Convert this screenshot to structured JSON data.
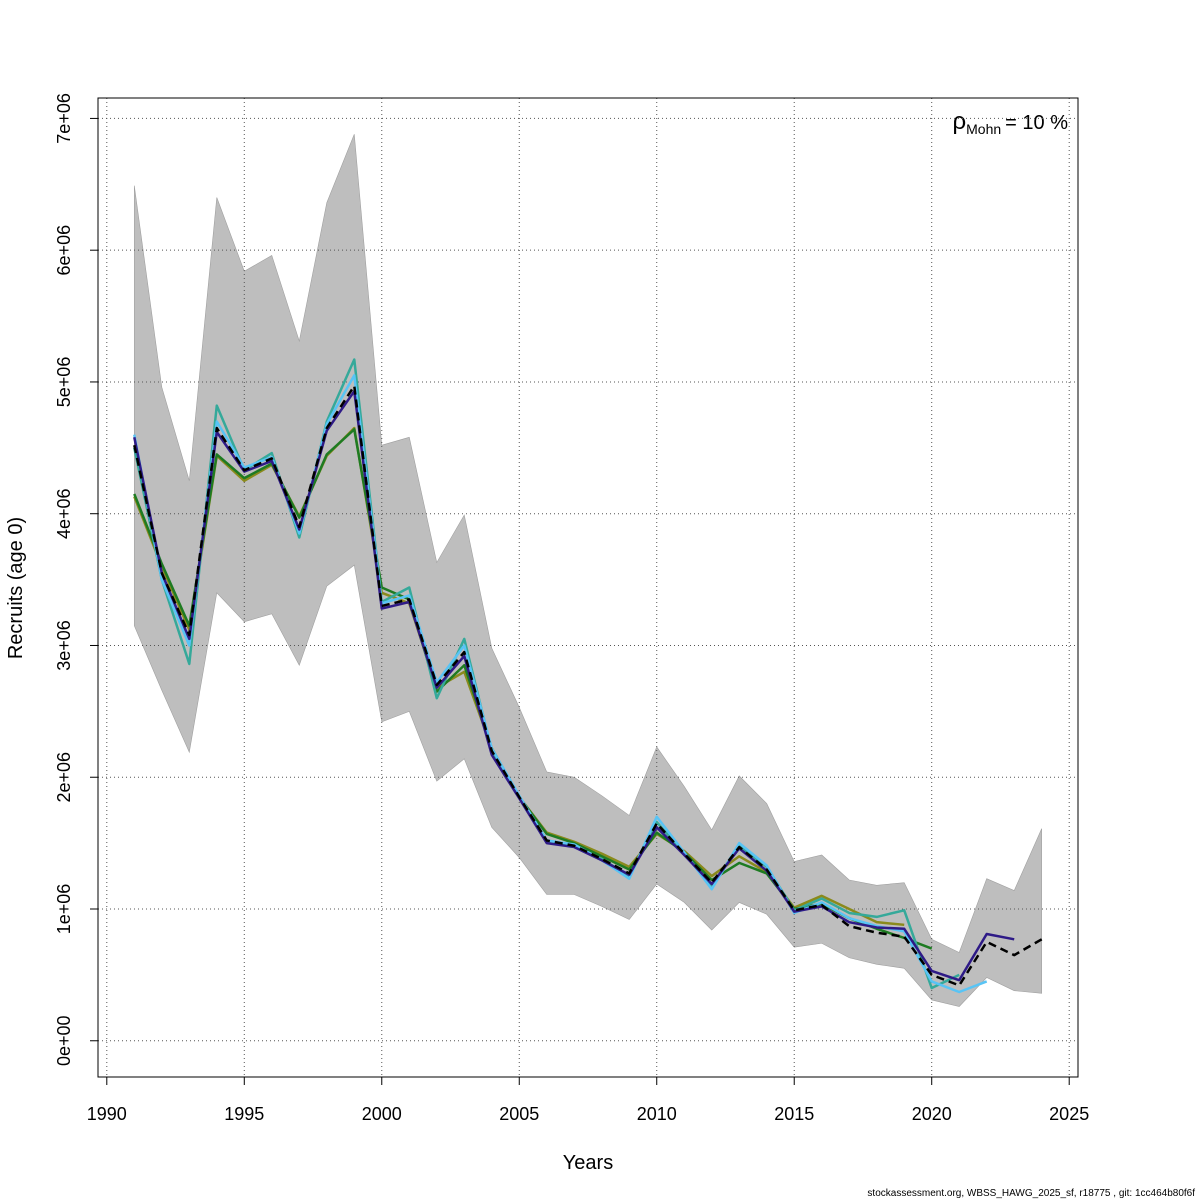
{
  "chart_data": {
    "type": "line",
    "x_label": "Years",
    "y_label": "Recruits (age 0)",
    "annotation": {
      "symbol": "ρ",
      "subscript": "Mohn",
      "text": "= 10 %"
    },
    "footer": "stockassessment.org, WBSS_HAWG_2025_sf, r18775 , git: 1cc464b80f6f",
    "xlim": [
      1989.68,
      2025.32
    ],
    "ylim": [
      -275000,
      7155000
    ],
    "xticks": [
      1990,
      1995,
      2000,
      2005,
      2010,
      2015,
      2020,
      2025
    ],
    "yticks": [
      {
        "value": 0,
        "label": "0e+00"
      },
      {
        "value": 1000000,
        "label": "1e+06"
      },
      {
        "value": 2000000,
        "label": "2e+06"
      },
      {
        "value": 3000000,
        "label": "3e+06"
      },
      {
        "value": 4000000,
        "label": "4e+06"
      },
      {
        "value": 5000000,
        "label": "5e+06"
      },
      {
        "value": 6000000,
        "label": "6e+06"
      },
      {
        "value": 7000000,
        "label": "7e+06"
      }
    ],
    "grid": true,
    "x": [
      1991,
      1992,
      1993,
      1994,
      1995,
      1996,
      1997,
      1998,
      1999,
      2000,
      2001,
      2002,
      2003,
      2004,
      2005,
      2006,
      2007,
      2008,
      2009,
      2010,
      2011,
      2012,
      2013,
      2014,
      2015,
      2016,
      2017,
      2018,
      2019,
      2020,
      2021,
      2022,
      2023,
      2024
    ],
    "band": {
      "color": "#bebebe",
      "upper": [
        6490000.0,
        4960000.0,
        4250000.0,
        6400000.0,
        5840000.0,
        5960000.0,
        5310000.0,
        6360000.0,
        6880000.0,
        4520000.0,
        4580000.0,
        3630000.0,
        3990000.0,
        2980000.0,
        2530000.0,
        2040000.0,
        2000000.0,
        1860000.0,
        1710000.0,
        2230000.0,
        1930000.0,
        1600000.0,
        2010000.0,
        1800000.0,
        1360000.0,
        1410000.0,
        1220000.0,
        1180000.0,
        1200000.0,
        770000.0,
        670000.0,
        1230000.0,
        1140000.0,
        1610000.0
      ],
      "lower": [
        3150000.0,
        2660000.0,
        2190000.0,
        3400000.0,
        3180000.0,
        3240000.0,
        2850000.0,
        3450000.0,
        3610000.0,
        2420000.0,
        2500000.0,
        1970000.0,
        2140000.0,
        1620000.0,
        1390000.0,
        1110000.0,
        1110000.0,
        1020000.0,
        920000.0,
        1190000.0,
        1050000.0,
        840000.0,
        1050000.0,
        960000.0,
        710000.0,
        740000.0,
        630000.0,
        580000.0,
        550000.0,
        310000.0,
        260000.0,
        480000.0,
        380000.0,
        360000.0
      ]
    },
    "series": [
      {
        "color": "#8a8a1c",
        "linestyle": "solid",
        "values": [
          4130000.0,
          3600000.0,
          3120000.0,
          4440000.0,
          4250000.0,
          4370000.0,
          3980000.0,
          4440000.0,
          4650000.0,
          3400000.0,
          3320000.0,
          2680000.0,
          2800000.0,
          2220000.0,
          1850000.0,
          1580000.0,
          1510000.0,
          1420000.0,
          1320000.0,
          1570000.0,
          1440000.0,
          1250000.0,
          1400000.0,
          1280000.0,
          1010000.0,
          1100000.0,
          1000000.0,
          900000.0,
          880000.0,
          null,
          null,
          null,
          null,
          null
        ]
      },
      {
        "color": "#1e7b22",
        "linestyle": "solid",
        "values": [
          4150000.0,
          3620000.0,
          3150000.0,
          4450000.0,
          4270000.0,
          4380000.0,
          3970000.0,
          4450000.0,
          4640000.0,
          3440000.0,
          3350000.0,
          2650000.0,
          2850000.0,
          2220000.0,
          1850000.0,
          1570000.0,
          1500000.0,
          1400000.0,
          1300000.0,
          1580000.0,
          1430000.0,
          1220000.0,
          1350000.0,
          1270000.0,
          1000000.0,
          1040000.0,
          930000.0,
          850000.0,
          780000.0,
          700000.0,
          null,
          null,
          null,
          null
        ]
      },
      {
        "color": "#35a99a",
        "linestyle": "solid",
        "values": [
          4500000.0,
          3500000.0,
          2860000.0,
          4820000.0,
          4330000.0,
          4460000.0,
          3820000.0,
          4700000.0,
          5170000.0,
          3330000.0,
          3440000.0,
          2600000.0,
          3050000.0,
          2200000.0,
          1850000.0,
          1520000.0,
          1480000.0,
          1380000.0,
          1250000.0,
          1660000.0,
          1420000.0,
          1180000.0,
          1480000.0,
          1320000.0,
          990000.0,
          1080000.0,
          970000.0,
          940000.0,
          990000.0,
          400000.0,
          500000.0,
          null,
          null,
          null
        ]
      },
      {
        "color": "#58c4f5",
        "linestyle": "solid",
        "values": [
          4600000.0,
          3500000.0,
          3000000.0,
          4700000.0,
          4350000.0,
          4430000.0,
          3850000.0,
          4680000.0,
          5050000.0,
          3320000.0,
          3380000.0,
          2720000.0,
          3000000.0,
          2220000.0,
          1860000.0,
          1520000.0,
          1490000.0,
          1370000.0,
          1230000.0,
          1700000.0,
          1430000.0,
          1150000.0,
          1500000.0,
          1330000.0,
          970000.0,
          1050000.0,
          930000.0,
          870000.0,
          830000.0,
          450000.0,
          370000.0,
          450000.0,
          null,
          null
        ]
      },
      {
        "color": "#2e1a87",
        "linestyle": "solid",
        "values": [
          4580000.0,
          3550000.0,
          3050000.0,
          4620000.0,
          4320000.0,
          4400000.0,
          3880000.0,
          4630000.0,
          4930000.0,
          3280000.0,
          3330000.0,
          2680000.0,
          2920000.0,
          2170000.0,
          1840000.0,
          1500000.0,
          1470000.0,
          1370000.0,
          1260000.0,
          1620000.0,
          1410000.0,
          1190000.0,
          1460000.0,
          1290000.0,
          980000.0,
          1020000.0,
          900000.0,
          860000.0,
          850000.0,
          530000.0,
          460000.0,
          810000.0,
          770000.0,
          null
        ]
      },
      {
        "color": "#000000",
        "linestyle": "dashed",
        "values": [
          4520000.0,
          3550000.0,
          3080000.0,
          4650000.0,
          4330000.0,
          4420000.0,
          3900000.0,
          4650000.0,
          4970000.0,
          3300000.0,
          3350000.0,
          2700000.0,
          2950000.0,
          2200000.0,
          1850000.0,
          1520000.0,
          1480000.0,
          1380000.0,
          1270000.0,
          1650000.0,
          1420000.0,
          1200000.0,
          1470000.0,
          1300000.0,
          990000.0,
          1030000.0,
          870000.0,
          820000.0,
          790000.0,
          500000.0,
          420000.0,
          750000.0,
          650000.0,
          770000.0
        ]
      }
    ]
  }
}
